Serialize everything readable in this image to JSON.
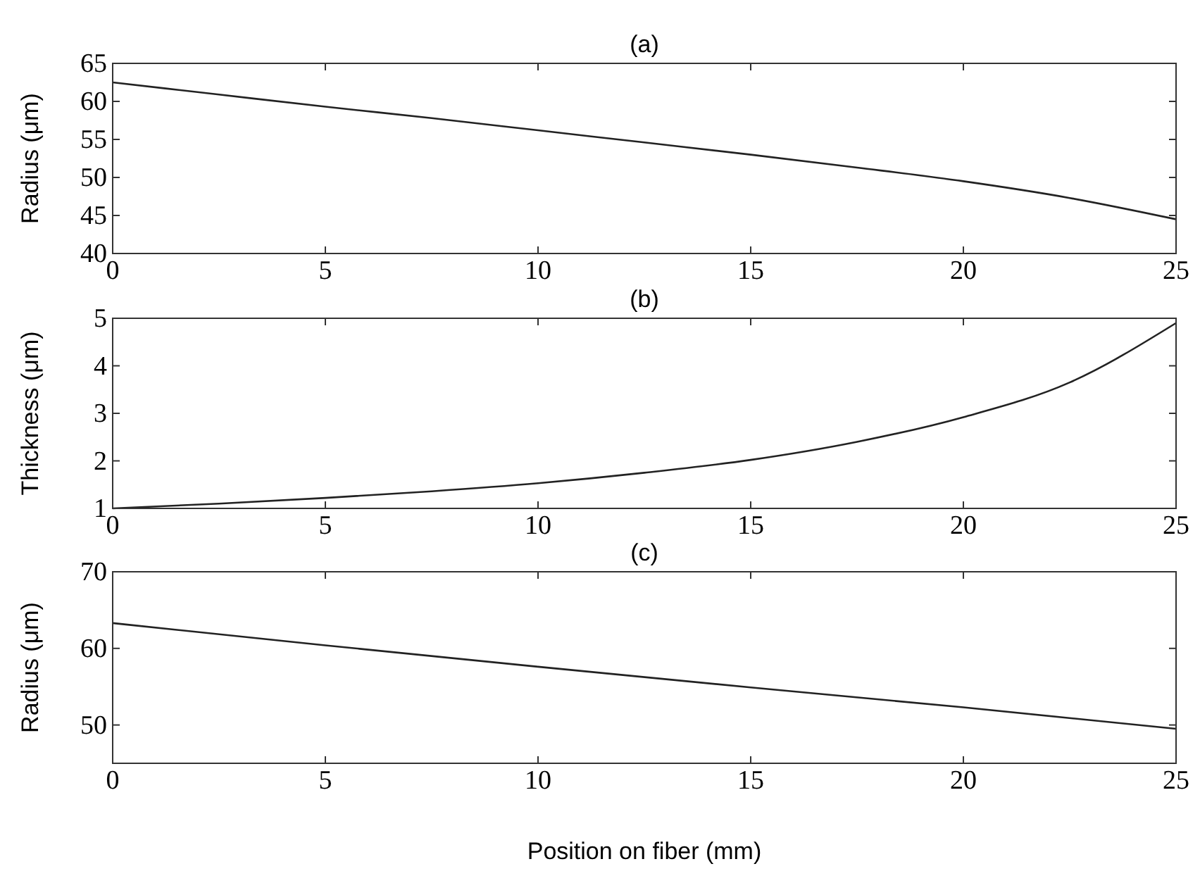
{
  "chart_data": [
    {
      "type": "line",
      "title": "(a)",
      "ylabel": "Radius (μm)",
      "x": [
        0,
        2.5,
        5,
        7.5,
        10,
        12.5,
        15,
        17.5,
        20,
        22.5,
        25
      ],
      "series": [
        {
          "color": "#222222",
          "values": [
            62.5,
            60.9,
            59.3,
            57.8,
            56.2,
            54.6,
            53.0,
            51.3,
            49.5,
            47.3,
            44.5
          ]
        }
      ],
      "xlim": [
        0,
        25
      ],
      "xticks": [
        0,
        5,
        10,
        15,
        20,
        25
      ],
      "ylim": [
        40,
        65
      ],
      "yticks": [
        40,
        45,
        50,
        55,
        60,
        65
      ],
      "grid": false
    },
    {
      "type": "line",
      "title": "(b)",
      "ylabel": "Thickness (μm)",
      "x": [
        0,
        2.5,
        5,
        7.5,
        10,
        12.5,
        15,
        17.5,
        20,
        22.5,
        25
      ],
      "series": [
        {
          "color": "#222222",
          "values": [
            1.0,
            1.1,
            1.22,
            1.36,
            1.53,
            1.75,
            2.02,
            2.4,
            2.92,
            3.65,
            4.9
          ]
        }
      ],
      "xlim": [
        0,
        25
      ],
      "xticks": [
        0,
        5,
        10,
        15,
        20,
        25
      ],
      "ylim": [
        1,
        5
      ],
      "yticks": [
        1,
        2,
        3,
        4,
        5
      ],
      "grid": false
    },
    {
      "type": "line",
      "title": "(c)",
      "ylabel": "Radius (μm)",
      "xlabel": "Position on fiber (mm)",
      "x": [
        0,
        5,
        10,
        15,
        20,
        25
      ],
      "series": [
        {
          "color": "#222222",
          "values": [
            63.3,
            60.4,
            57.6,
            54.9,
            52.3,
            49.5
          ]
        }
      ],
      "xlim": [
        0,
        25
      ],
      "xticks": [
        0,
        5,
        10,
        15,
        20,
        25
      ],
      "ylim": [
        45,
        70
      ],
      "yticks": [
        50,
        60,
        70
      ],
      "grid": false
    }
  ]
}
